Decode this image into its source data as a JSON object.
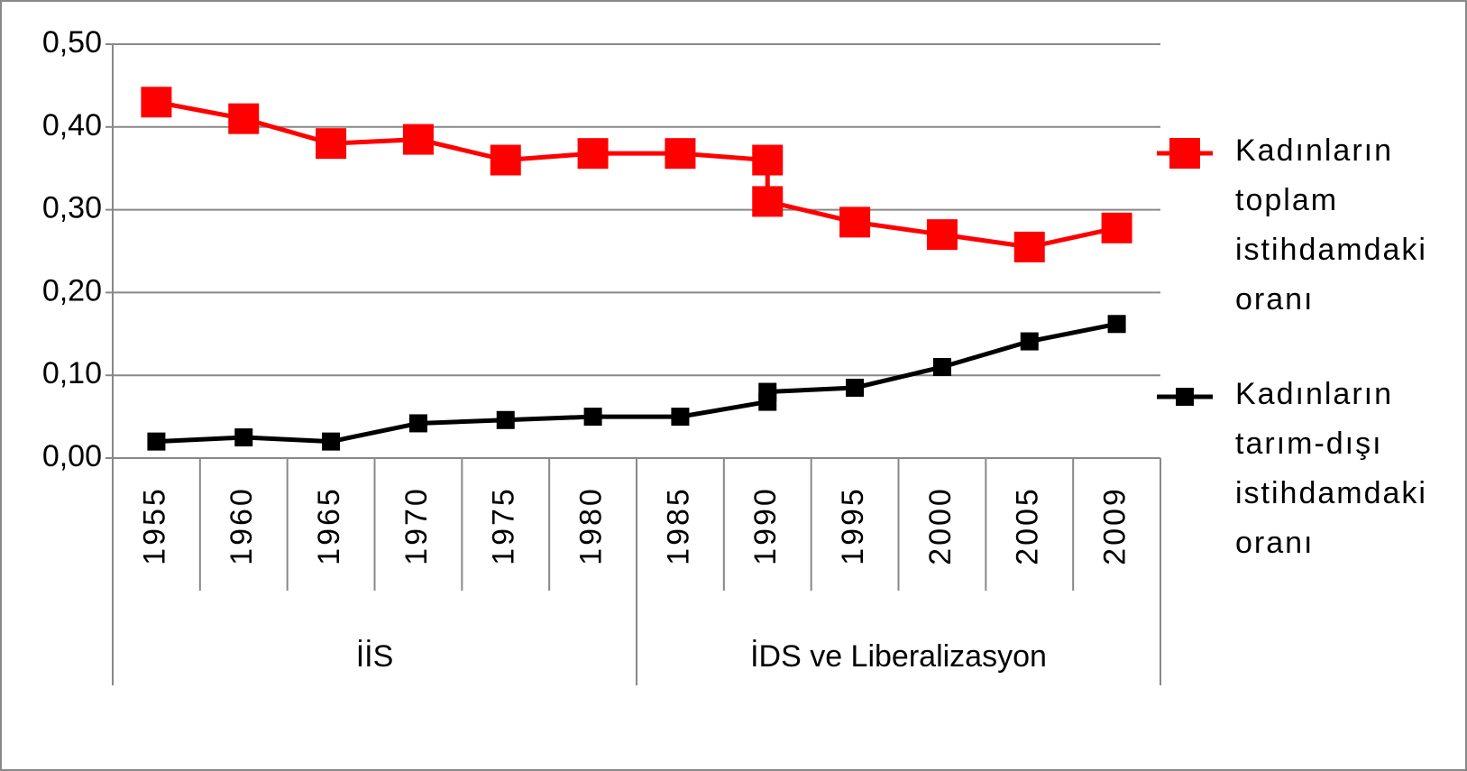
{
  "chart_data": {
    "type": "line",
    "categories": [
      "1955",
      "1960",
      "1965",
      "1970",
      "1975",
      "1980",
      "1985",
      "1990",
      "1995",
      "2000",
      "2005",
      "2009"
    ],
    "groups": [
      {
        "label": "İİS",
        "size": 6
      },
      {
        "label": "İDS ve Liberalizasyon",
        "size": 6
      }
    ],
    "series": [
      {
        "name": "Kadınların toplam istihdamdaki oranı",
        "color": "#ff0000",
        "marker_size": 34,
        "values": [
          0.43,
          0.41,
          0.38,
          0.385,
          0.36,
          0.368,
          0.368,
          [
            0.36,
            0.31
          ],
          0.285,
          0.27,
          0.255,
          0.278
        ]
      },
      {
        "name": "Kadınların tarım-dışı istihdamdaki oranı",
        "color": "#000000",
        "marker_size": 20,
        "values": [
          0.02,
          0.025,
          0.02,
          0.042,
          0.046,
          0.05,
          0.05,
          [
            0.068,
            0.08
          ],
          0.085,
          0.11,
          0.141,
          0.162
        ]
      }
    ],
    "ylim": [
      0,
      0.5
    ],
    "yticks": [
      {
        "value": 0,
        "label": "0,00"
      },
      {
        "value": 0.1,
        "label": "0,10"
      },
      {
        "value": 0.2,
        "label": "0,20"
      },
      {
        "value": 0.3,
        "label": "0,30"
      },
      {
        "value": 0.4,
        "label": "0,40"
      },
      {
        "value": 0.5,
        "label": "0,50"
      }
    ],
    "grid": true,
    "legend": "right"
  }
}
